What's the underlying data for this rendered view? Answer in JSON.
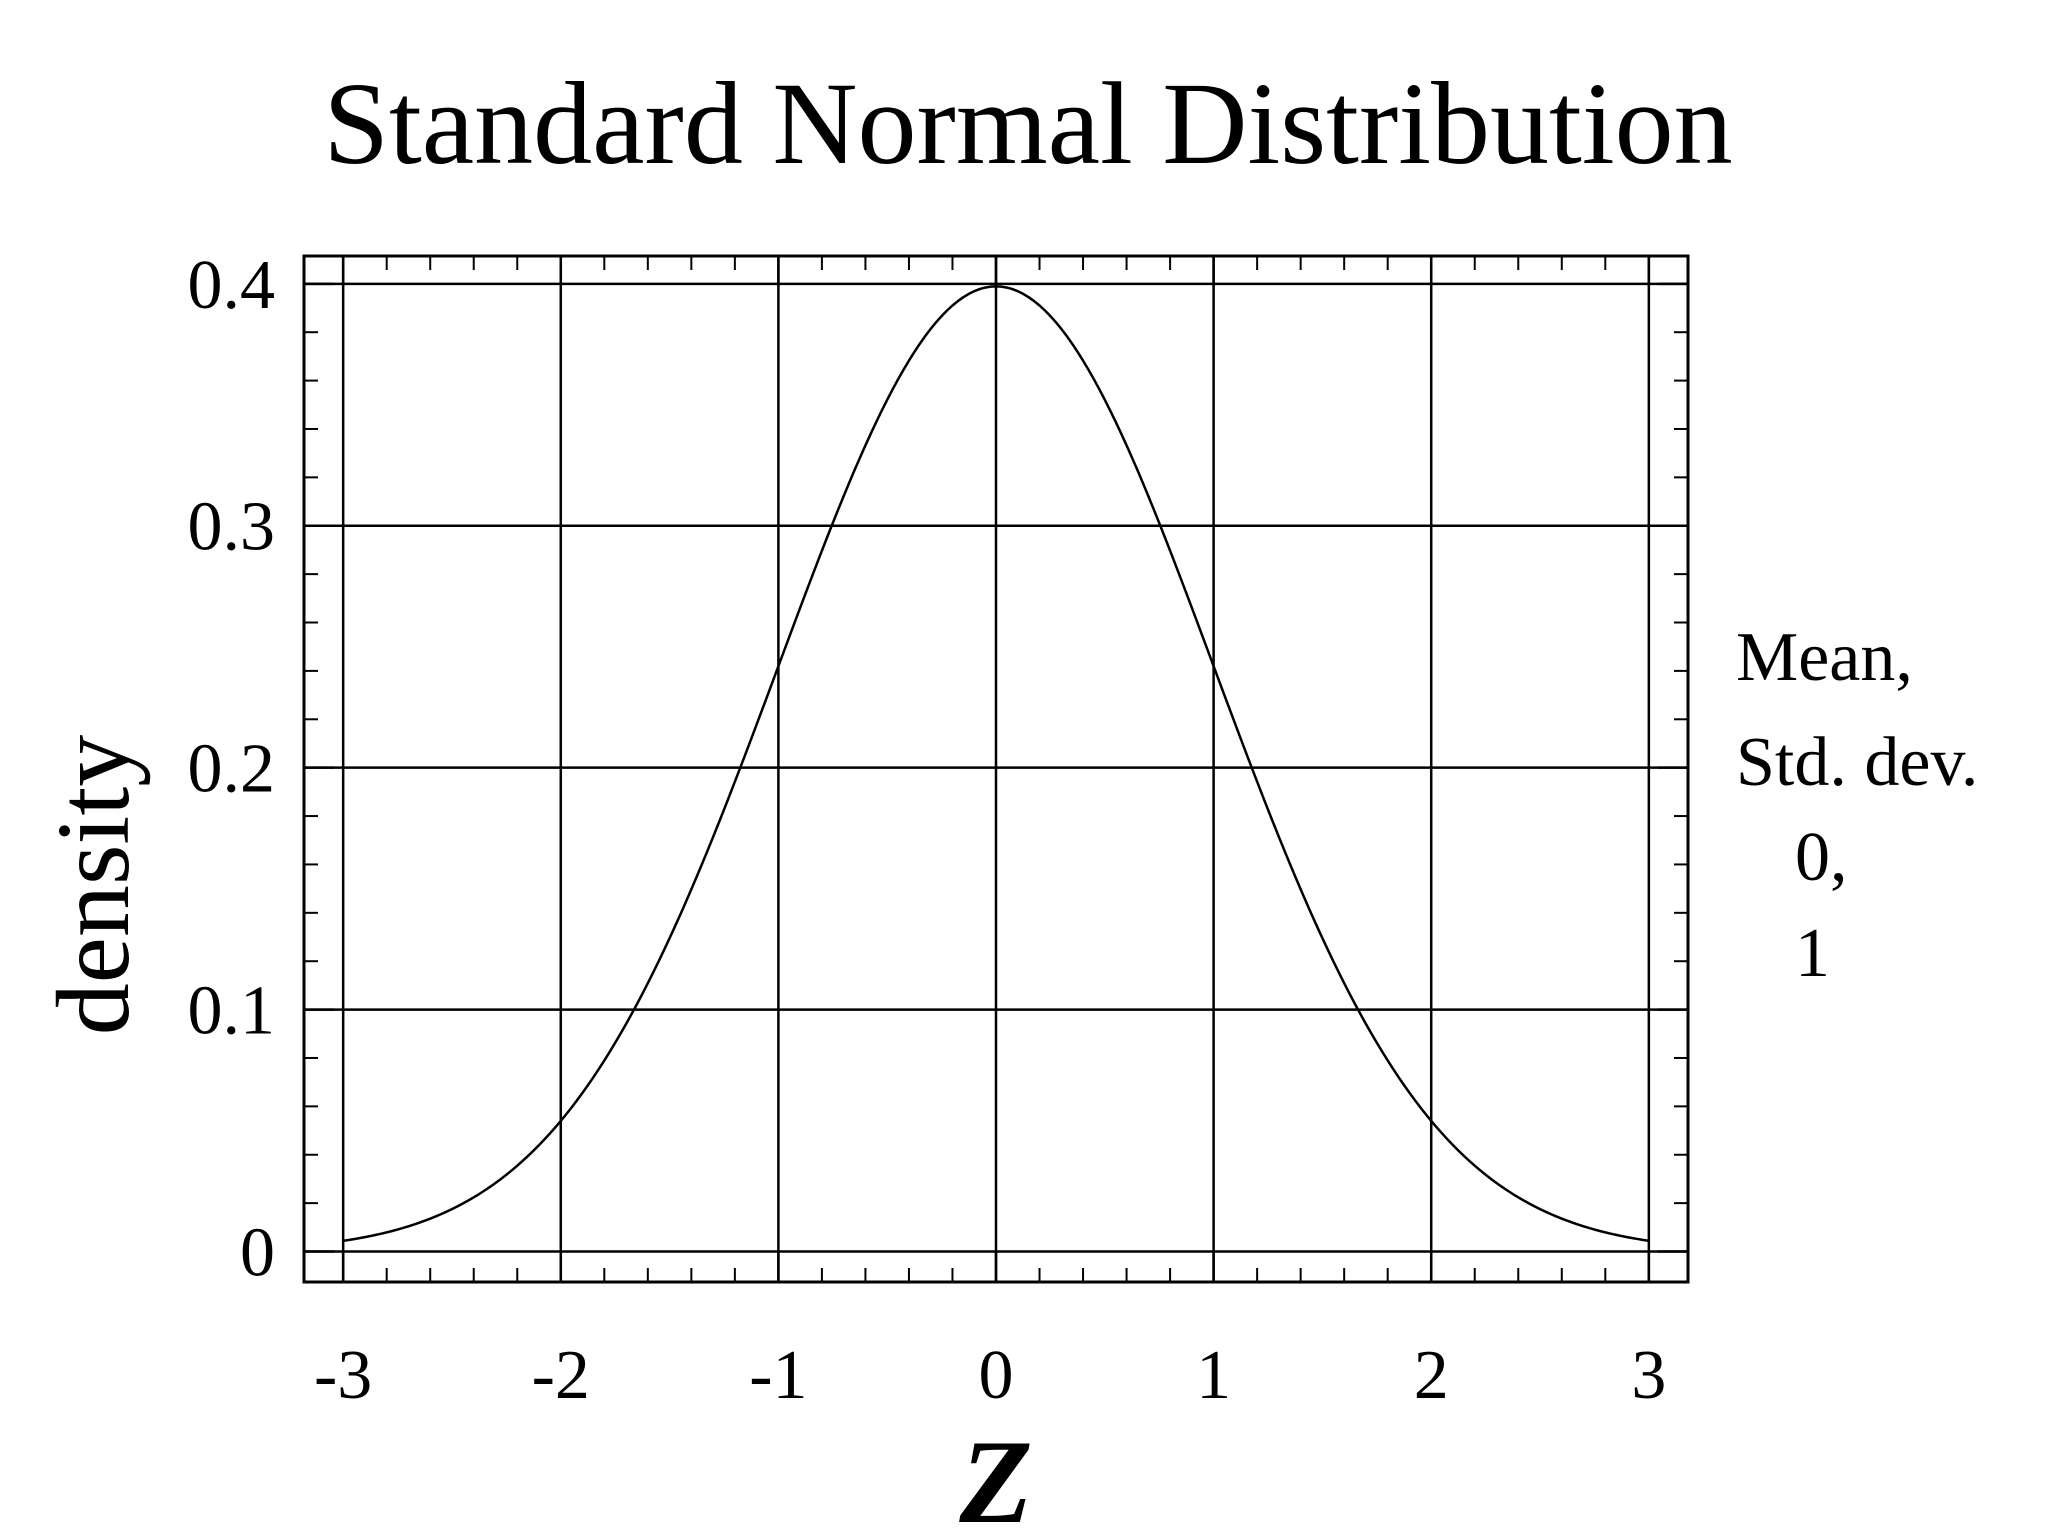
{
  "chart_data": {
    "type": "line",
    "title": "Standard Normal Distribution",
    "xlabel": "Z",
    "ylabel": "density",
    "xlim": [
      -3.18,
      3.18
    ],
    "ylim": [
      -0.0126,
      0.4115
    ],
    "xticks": [
      -3,
      -2,
      -1,
      0,
      1,
      2,
      3
    ],
    "xtick_labels": [
      "-3",
      "-2",
      "-1",
      "0",
      "1",
      "2",
      "3"
    ],
    "yticks": [
      0,
      0.1,
      0.2,
      0.3,
      0.4
    ],
    "ytick_labels": [
      "0",
      "0.1",
      "0.2",
      "0.3",
      "0.4"
    ],
    "x_minor_step": 0.2,
    "y_minor_step": 0.02,
    "grid": true,
    "legend": {
      "position": "right",
      "lines": [
        "Mean,",
        "Std. dev.",
        "0,",
        "1"
      ]
    },
    "series": [
      {
        "mean": 0,
        "sd": 1,
        "x": [
          -3,
          -2.75,
          -2.5,
          -2.25,
          -2,
          -1.75,
          -1.5,
          -1.25,
          -1,
          -0.75,
          -0.5,
          -0.25,
          0,
          0.25,
          0.5,
          0.75,
          1,
          1.25,
          1.5,
          1.75,
          2,
          2.25,
          2.5,
          2.75,
          3
        ],
        "y": [
          0.0044,
          0.0091,
          0.0175,
          0.0317,
          0.054,
          0.0863,
          0.1295,
          0.1826,
          0.242,
          0.3011,
          0.3521,
          0.3867,
          0.3989,
          0.3867,
          0.3521,
          0.3011,
          0.242,
          0.1826,
          0.1295,
          0.0863,
          0.054,
          0.0317,
          0.0175,
          0.0091,
          0.0044
        ]
      }
    ],
    "colors": {
      "line": "#000000",
      "grid": "#000000",
      "background": "#ffffff"
    }
  }
}
